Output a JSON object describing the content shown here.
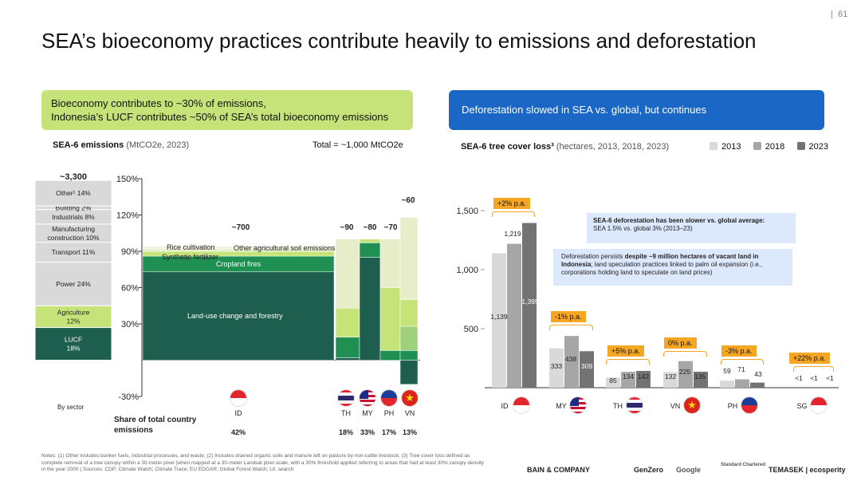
{
  "page_number": "61",
  "page_separator": "|",
  "title": "SEA’s bioeconomy practices contribute heavily to emissions and deforestation",
  "left": {
    "pill_line1": "Bioeconomy contributes to ~30% of emissions,",
    "pill_line2": "Indonesia’s LUCF contributes ~50% of SEA’s total bioeconomy emissions",
    "subtitle_bold": "SEA-6 emissions",
    "subtitle_light": "(MtCO2e, 2023)",
    "total": "Total = ~1,000 MtCO2e",
    "share_label": "Share of total country emissions"
  },
  "right": {
    "pill": "Deforestation slowed in SEA vs. global, but continues",
    "subtitle_bold": "SEA-6 tree cover loss³",
    "subtitle_light": "(hectares, 2013, 2018, 2023)",
    "legend": [
      {
        "label": "2013",
        "color": "#d9d9d9"
      },
      {
        "label": "2018",
        "color": "#a6a6a6"
      },
      {
        "label": "2023",
        "color": "#737373"
      }
    ],
    "callout1_bold": "SEA-6 deforestation has been slower vs. global average:",
    "callout1_text": "SEA 1.5% vs. global 3% (2013–23)",
    "callout2_pre": "Deforestation persists ",
    "callout2_bold": "despite ~9 million hectares of vacant land in Indonesia",
    "callout2_post": "; land speculation practices linked to palm oil expansion (i.e., corporations holding land to speculate on land prices)"
  },
  "notes": "Notes: (1) Other includes bunker fuels, industrial processes, and waste; (2) Includes drained organic soils and manure left on pasture by non-cattle livestock; (3) Tree cover loss defined as complete removal of a tree canopy within a 30-meter pixel (when mapped at a 30-meter Landsat pixel scale, with a 30% threshold applied referring to areas that had at least 30% canopy density in the year 2000 | Sources: CDP; Climate Watch; Climate Trace; EU EDGAR; Global Forest Watch; Lit. search",
  "logos": [
    "BAIN & COMPANY",
    "GenZero",
    "Google",
    "Standard Chartered",
    "TEMASEK | ecosperity"
  ],
  "chart_data": [
    {
      "type": "bar",
      "chart": "SEA-6 emissions by sector and share of total country emissions",
      "yaxis_ticks": [
        "150%",
        "120%",
        "90%",
        "60%",
        "30%",
        "-30%"
      ],
      "ylim": [
        -30,
        150
      ],
      "sector_bar": {
        "total_label": "~3,300",
        "xlabel": "By sector",
        "segments": [
          {
            "label": "LUCF 18%",
            "value": 18,
            "color": "#1e5e4e"
          },
          {
            "label": "Agriculture 12%",
            "value": 12,
            "color": "#c6e37a"
          },
          {
            "label": "Power 24%",
            "value": 24,
            "color": "#d9d9d9"
          },
          {
            "label": "Transport 11%",
            "value": 11,
            "color": "#d9d9d9"
          },
          {
            "label": "Manufacturing construction 10%",
            "value": 10,
            "color": "#d9d9d9"
          },
          {
            "label": "Industrials 8%",
            "value": 8,
            "color": "#d9d9d9"
          },
          {
            "label": "Building 2%",
            "value": 2,
            "color": "#d9d9d9"
          },
          {
            "label": "Other¹ 14%",
            "value": 14,
            "color": "#d9d9d9"
          }
        ]
      },
      "country_totals": [
        {
          "country": "ID",
          "total": "~700",
          "share": "42%"
        },
        {
          "country": "TH",
          "total": "~90",
          "share": "18%"
        },
        {
          "country": "MY",
          "total": "~80",
          "share": "33%"
        },
        {
          "country": "PH",
          "total": "~70",
          "share": "17%"
        },
        {
          "country": "VN",
          "total": "~60",
          "share": "13%"
        }
      ],
      "id_segments": [
        {
          "label": "Land-use change and forestry",
          "value": 73
        },
        {
          "label": "Cropland fires",
          "value": 13
        },
        {
          "label": "Synthetic fertilizer",
          "value": 4
        },
        {
          "label": "Rice cultivation",
          "value": 2
        },
        {
          "label": "Other agricultural soil emissions²",
          "value": 2
        }
      ]
    },
    {
      "type": "bar",
      "title": "SEA-6 tree cover loss³",
      "ylabel": "",
      "ylim": [
        0,
        1500
      ],
      "yticks": [
        500,
        1000,
        1500
      ],
      "ytick_labels": [
        "500",
        "1,000",
        "1,500"
      ],
      "categories": [
        "ID",
        "MY",
        "TH",
        "VN",
        "PH",
        "SG"
      ],
      "series": [
        {
          "name": "2013",
          "values": [
            1139,
            333,
            85,
            132,
            59,
            0
          ],
          "labels": [
            "1,139",
            "333",
            "85",
            "132",
            "59",
            "<1"
          ]
        },
        {
          "name": "2018",
          "values": [
            1219,
            438,
            134,
            225,
            71,
            0
          ],
          "labels": [
            "1,219",
            "438",
            "134",
            "225",
            "71",
            "<1"
          ]
        },
        {
          "name": "2023",
          "values": [
            1395,
            309,
            142,
            135,
            43,
            0
          ],
          "labels": [
            "1,395",
            "309",
            "142",
            "135",
            "43",
            "<1"
          ]
        }
      ],
      "growth_tags": [
        "+2% p.a.",
        "-1% p.a.",
        "+5% p.a.",
        "0% p.a.",
        "-3% p.a.",
        "+22% p.a."
      ]
    }
  ]
}
